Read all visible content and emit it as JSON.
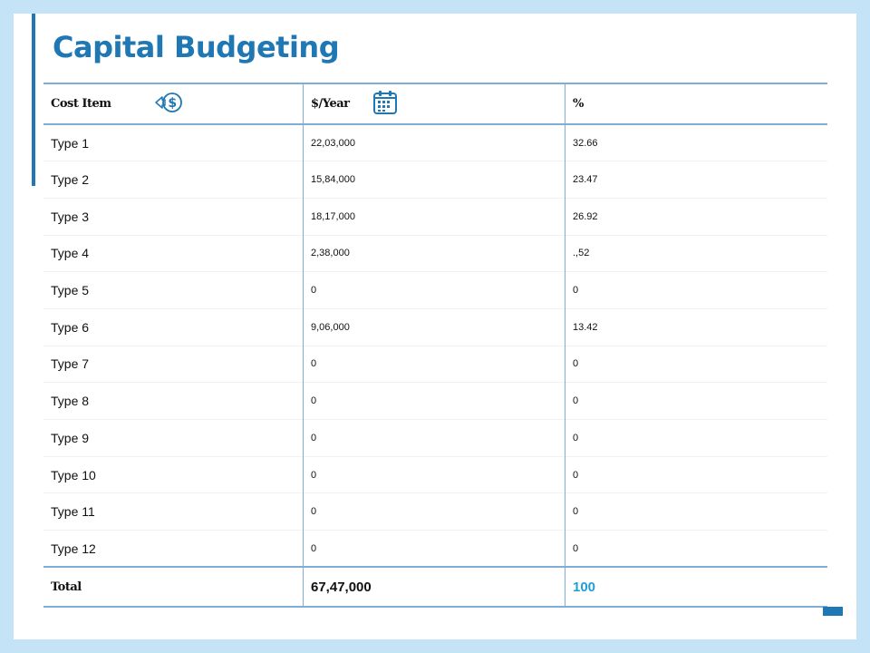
{
  "slide": {
    "title": "Capital Budgeting"
  },
  "table": {
    "headers": {
      "cost_item": "Cost Item",
      "per_year": "$/Year",
      "percent": "%"
    },
    "icons": {
      "cost_item": "dollar-exchange-icon",
      "per_year": "calendar-icon"
    },
    "rows": [
      {
        "name": "Type 1",
        "value": "22,03,000",
        "percent": "32.66"
      },
      {
        "name": "Type 2",
        "value": "15,84,000",
        "percent": "23.47"
      },
      {
        "name": "Type 3",
        "value": "18,17,000",
        "percent": "26.92"
      },
      {
        "name": "Type 4",
        "value": "2,38,000",
        "percent": ".,52"
      },
      {
        "name": "Type 5",
        "value": "0",
        "percent": "0"
      },
      {
        "name": "Type 6",
        "value": "9,06,000",
        "percent": "13.42"
      },
      {
        "name": "Type 7",
        "value": "0",
        "percent": "0"
      },
      {
        "name": "Type 8",
        "value": "0",
        "percent": "0"
      },
      {
        "name": "Type 9",
        "value": "0",
        "percent": "0"
      },
      {
        "name": "Type 10",
        "value": "0",
        "percent": "0"
      },
      {
        "name": "Type 11",
        "value": "0",
        "percent": "0"
      },
      {
        "name": "Type 12",
        "value": "0",
        "percent": "0"
      }
    ],
    "total": {
      "label": "Total",
      "value": "67,47,000",
      "percent": "100"
    }
  },
  "colors": {
    "accent": "#1f77b4",
    "border": "#7eaed6",
    "highlight": "#1ea0d6",
    "background": "#c5e3f7"
  }
}
